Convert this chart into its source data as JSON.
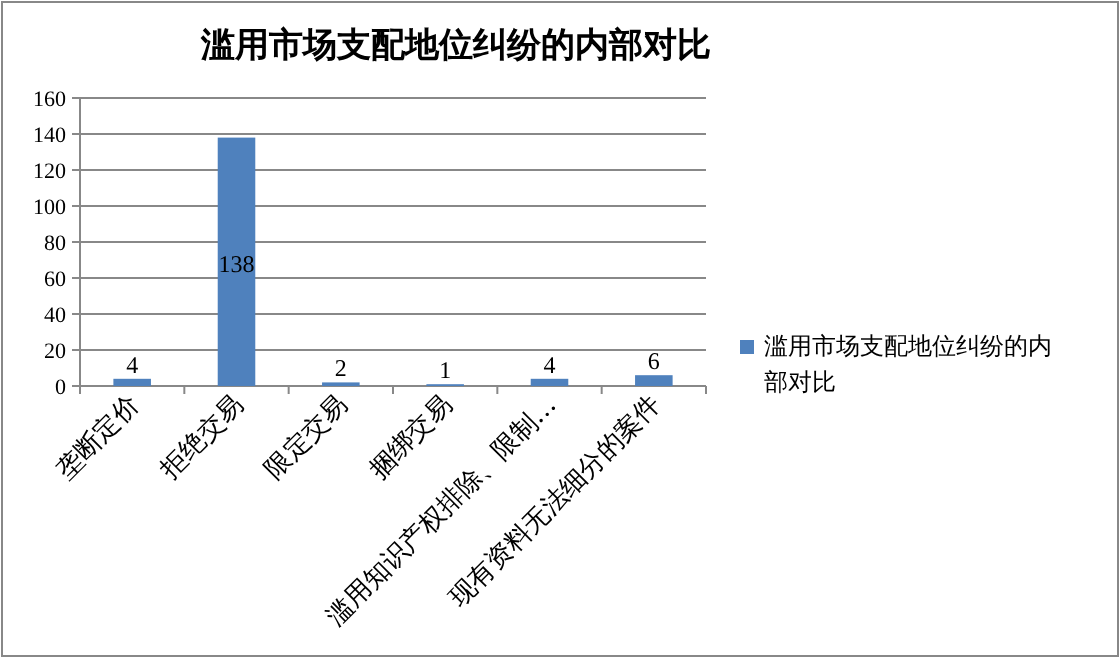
{
  "chart_data": {
    "type": "bar",
    "title": "滥用市场支配地位纠纷的内部对比",
    "categories": [
      "垄断定价",
      "拒绝交易",
      "限定交易",
      "捆绑交易",
      "滥用知识产权排除、限制…",
      "现有资料无法细分的案件"
    ],
    "series": [
      {
        "name": "滥用市场支配地位纠纷的内部对比",
        "color": "#4f81bd",
        "values": [
          4,
          138,
          2,
          1,
          4,
          6
        ]
      }
    ],
    "ylim": [
      0,
      160
    ],
    "yticks": [
      0,
      20,
      40,
      60,
      80,
      100,
      120,
      140,
      160
    ],
    "grid": "y",
    "legend": "right",
    "data_labels": true
  }
}
